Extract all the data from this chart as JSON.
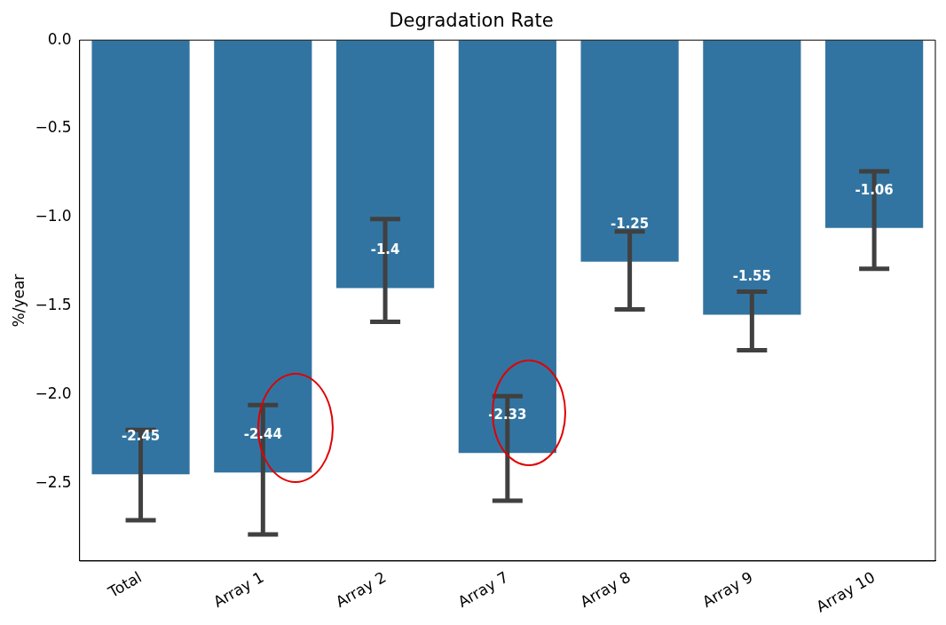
{
  "chart_data": {
    "type": "bar",
    "title": "Degradation Rate",
    "ylabel": "%/year",
    "categories": [
      "Total",
      "Array 1",
      "Array 2",
      "Array 7",
      "Array 8",
      "Array 9",
      "Array 10"
    ],
    "values": [
      -2.45,
      -2.44,
      -1.4,
      -2.33,
      -1.25,
      -1.55,
      -1.06
    ],
    "errors": [
      [
        -2.71,
        -2.2
      ],
      [
        -2.79,
        -2.06
      ],
      [
        -1.59,
        -1.01
      ],
      [
        -2.6,
        -2.01
      ],
      [
        -1.52,
        -1.08
      ],
      [
        -1.75,
        -1.42
      ],
      [
        -1.29,
        -0.74
      ]
    ],
    "color": "#3274a1",
    "data_labels": true,
    "grid": false,
    "legend": false,
    "ylim": [
      -2.94,
      0
    ],
    "yticks": [
      {
        "value": 0,
        "label": "0.0"
      },
      {
        "value": -0.5,
        "label": "−0.5"
      },
      {
        "value": -1,
        "label": "−1.0"
      },
      {
        "value": -1.5,
        "label": "−1.5"
      },
      {
        "value": -2,
        "label": "−2.0"
      },
      {
        "value": -2.5,
        "label": "−2.5"
      }
    ]
  }
}
